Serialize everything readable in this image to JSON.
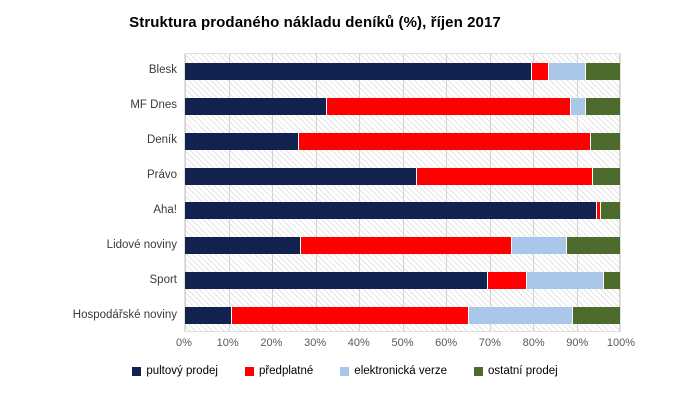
{
  "title": "Struktura prodaného nákladu deníků (%), říjen 2017",
  "chart_data": {
    "type": "bar",
    "orientation": "horizontal",
    "stacked": true,
    "title": "Struktura prodaného nákladu deníků (%), říjen 2017",
    "categories": [
      "Blesk",
      "MF Dnes",
      "Deník",
      "Právo",
      "Aha!",
      "Lidové noviny",
      "Sport",
      "Hospodářské noviny"
    ],
    "series": [
      {
        "name": "pultový prodej",
        "color": "#12224f",
        "values": [
          79.5,
          32.5,
          26.0,
          53.0,
          94.5,
          26.5,
          69.5,
          10.5
        ]
      },
      {
        "name": "předplatné",
        "color": "#fe0000",
        "values": [
          4.0,
          56.0,
          67.0,
          40.5,
          1.0,
          48.5,
          9.0,
          54.5
        ]
      },
      {
        "name": "elektronická verze",
        "color": "#a9c7e8",
        "values": [
          8.5,
          3.5,
          0.0,
          0.0,
          0.0,
          12.5,
          17.5,
          24.0
        ]
      },
      {
        "name": "ostatní prodej",
        "color": "#4c6b2c",
        "values": [
          8.0,
          8.0,
          7.0,
          6.5,
          4.5,
          12.5,
          4.0,
          11.0
        ]
      }
    ],
    "xlabel": "",
    "ylabel": "",
    "xlim": [
      0,
      100
    ],
    "x_ticks": [
      "0%",
      "10%",
      "20%",
      "30%",
      "40%",
      "50%",
      "60%",
      "70%",
      "80%",
      "90%",
      "100%"
    ],
    "grid": "vertical",
    "legend_position": "bottom",
    "plot_background": "diagonal-hatch"
  }
}
